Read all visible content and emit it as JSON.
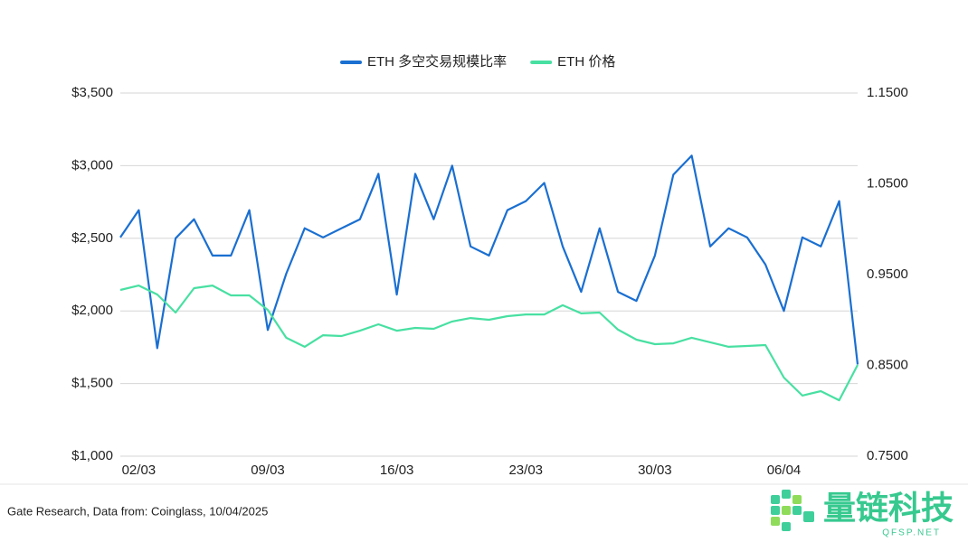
{
  "chart_data": {
    "type": "line",
    "source": "Gate Research, Data from: Coinglass, 10/04/2025",
    "legend": "top",
    "grid": true,
    "categories": [
      null,
      "02/03",
      null,
      null,
      null,
      null,
      null,
      null,
      "09/03",
      null,
      null,
      null,
      null,
      null,
      null,
      "16/03",
      null,
      null,
      null,
      null,
      null,
      null,
      "23/03",
      null,
      null,
      null,
      null,
      null,
      null,
      "30/03",
      null,
      null,
      null,
      null,
      null,
      null,
      "06/04",
      null,
      null,
      null,
      null
    ],
    "ylim": [
      1000,
      3500
    ],
    "yticks": [
      {
        "value": 1000,
        "label": "$1,000"
      },
      {
        "value": 1500,
        "label": "$1,500"
      },
      {
        "value": 2000,
        "label": "$2,000"
      },
      {
        "value": 2500,
        "label": "$2,500"
      },
      {
        "value": 3000,
        "label": "$3,000"
      },
      {
        "value": 3500,
        "label": "$3,500"
      }
    ],
    "y2lim": [
      0.75,
      1.15
    ],
    "y2ticks": [
      {
        "value": 0.75,
        "label": "0.7500"
      },
      {
        "value": 0.85,
        "label": "0.8500"
      },
      {
        "value": 0.95,
        "label": "0.9500"
      },
      {
        "value": 1.05,
        "label": "1.0500"
      },
      {
        "value": 1.15,
        "label": "1.1500"
      }
    ],
    "series": [
      {
        "name": "ETH 多空交易规模比率",
        "color": "#1a6fd1",
        "axis": "y2",
        "values": [
          0.991,
          1.021,
          0.869,
          0.99,
          1.011,
          0.971,
          0.971,
          1.021,
          0.889,
          0.951,
          1.001,
          0.991,
          1.001,
          1.011,
          1.061,
          0.928,
          1.061,
          1.011,
          1.07,
          0.981,
          0.971,
          1.021,
          1.031,
          1.051,
          0.981,
          0.931,
          1.001,
          0.931,
          0.921,
          0.971,
          1.06,
          1.081,
          0.981,
          1.001,
          0.991,
          0.961,
          0.91,
          0.991,
          0.981,
          1.031,
          0.851
        ]
      },
      {
        "name": "ETH 价格",
        "color": "#48e0a2",
        "values": [
          2144,
          2175,
          2113,
          1989,
          2157,
          2175,
          2107,
          2107,
          2007,
          1815,
          1753,
          1833,
          1827,
          1864,
          1908,
          1864,
          1883,
          1877,
          1927,
          1951,
          1939,
          1964,
          1976,
          1976,
          2039,
          1983,
          1989,
          1871,
          1802,
          1771,
          1777,
          1815,
          1784,
          1753,
          1759,
          1765,
          1541,
          1417,
          1448,
          1385,
          1628
        ]
      }
    ]
  },
  "logo": {
    "text": "量链科技",
    "subtext": "QFSP.NET"
  }
}
